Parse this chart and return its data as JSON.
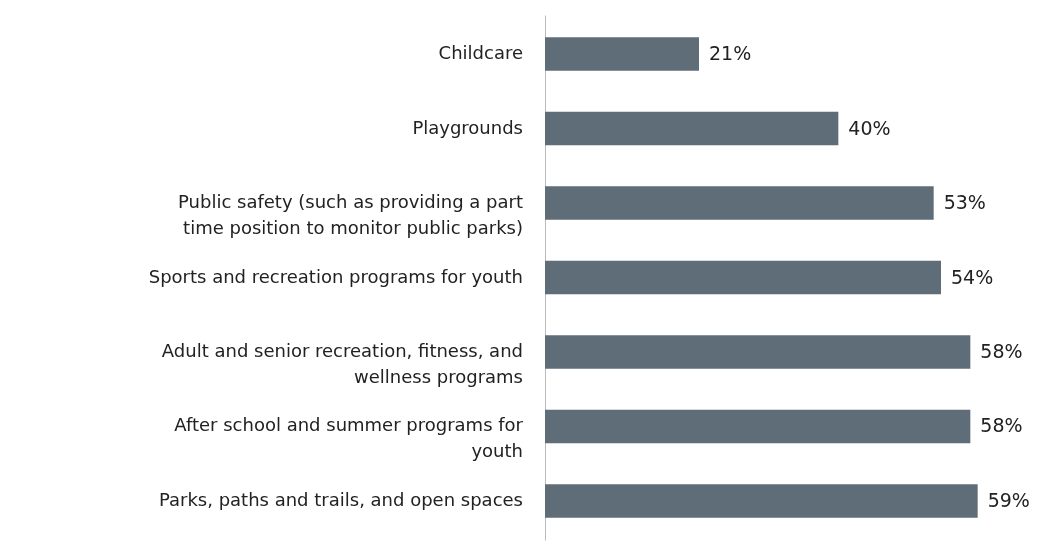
{
  "chart_data": {
    "type": "bar",
    "orientation": "horizontal",
    "categories": [
      "Childcare",
      "Playgrounds",
      "Public safety (such as providing a part time position to monitor public parks)",
      "Sports and recreation programs for youth",
      "Adult and senior recreation, fitness, and wellness programs",
      "After school and summer programs for youth",
      "Parks, paths and trails, and open spaces"
    ],
    "values": [
      21,
      40,
      53,
      54,
      58,
      58,
      59
    ],
    "color": "#5f6d78",
    "value_labels": [
      "21%",
      "40%",
      "53%",
      "54%",
      "58%",
      "58%",
      "59%"
    ]
  }
}
